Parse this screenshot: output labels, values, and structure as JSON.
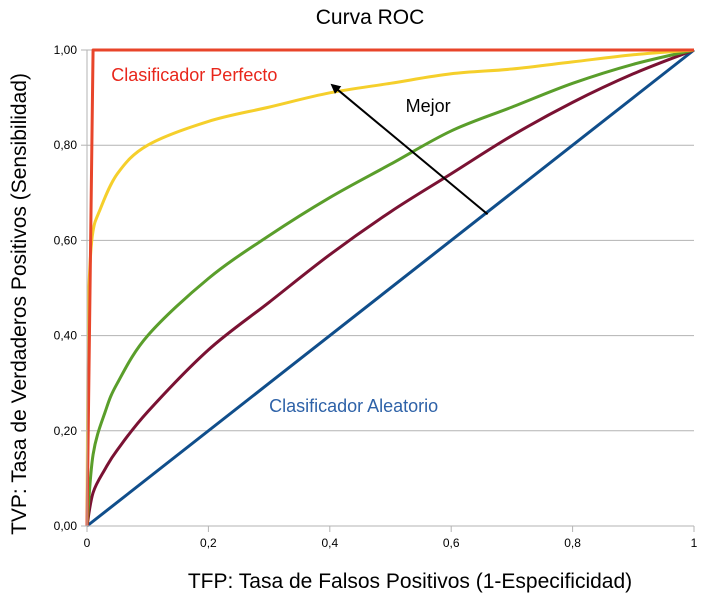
{
  "chart_data": {
    "type": "line",
    "title": "Curva ROC",
    "xlabel": "TFP: Tasa de Falsos Positivos (1-Especificidad)",
    "ylabel": "TVP: Tasa de Verdaderos Positivos (Sensibilidad)",
    "xlim": [
      0,
      1
    ],
    "ylim": [
      0,
      1
    ],
    "x_ticks": [
      0,
      0.2,
      0.4,
      0.6,
      0.8,
      1
    ],
    "x_tick_labels": [
      "0",
      "0,2",
      "0,4",
      "0,6",
      "0,8",
      "1"
    ],
    "y_ticks": [
      0,
      0.2,
      0.4,
      0.6,
      0.8,
      1
    ],
    "y_tick_labels": [
      "0,00",
      "0,20",
      "0,40",
      "0,60",
      "0,80",
      "1,00"
    ],
    "grid": "horizontal",
    "legend": "none",
    "series": [
      {
        "color": "#e8452a",
        "points": [
          [
            0,
            0
          ],
          [
            0.01,
            1.0
          ],
          [
            1.0,
            1.0
          ]
        ]
      },
      {
        "color": "#f5cf2b",
        "points": [
          [
            0,
            0
          ],
          [
            0.002,
            0.42
          ],
          [
            0.005,
            0.55
          ],
          [
            0.01,
            0.62
          ],
          [
            0.02,
            0.66
          ],
          [
            0.05,
            0.74
          ],
          [
            0.1,
            0.8
          ],
          [
            0.2,
            0.85
          ],
          [
            0.3,
            0.88
          ],
          [
            0.4,
            0.91
          ],
          [
            0.5,
            0.93
          ],
          [
            0.6,
            0.95
          ],
          [
            0.7,
            0.96
          ],
          [
            0.8,
            0.975
          ],
          [
            0.9,
            0.99
          ],
          [
            1.0,
            1.0
          ]
        ]
      },
      {
        "color": "#5a9e2b",
        "points": [
          [
            0,
            0
          ],
          [
            0.01,
            0.15
          ],
          [
            0.03,
            0.24
          ],
          [
            0.05,
            0.3
          ],
          [
            0.1,
            0.4
          ],
          [
            0.2,
            0.52
          ],
          [
            0.3,
            0.61
          ],
          [
            0.4,
            0.69
          ],
          [
            0.5,
            0.76
          ],
          [
            0.6,
            0.83
          ],
          [
            0.7,
            0.88
          ],
          [
            0.8,
            0.93
          ],
          [
            0.9,
            0.97
          ],
          [
            1.0,
            1.0
          ]
        ]
      },
      {
        "color": "#7a1233",
        "points": [
          [
            0,
            0
          ],
          [
            0.01,
            0.07
          ],
          [
            0.03,
            0.12
          ],
          [
            0.05,
            0.16
          ],
          [
            0.1,
            0.24
          ],
          [
            0.2,
            0.37
          ],
          [
            0.3,
            0.47
          ],
          [
            0.4,
            0.57
          ],
          [
            0.5,
            0.66
          ],
          [
            0.6,
            0.74
          ],
          [
            0.7,
            0.82
          ],
          [
            0.8,
            0.89
          ],
          [
            0.9,
            0.95
          ],
          [
            1.0,
            1.0
          ]
        ]
      },
      {
        "color": "#104e8b",
        "points": [
          [
            0,
            0
          ],
          [
            1.0,
            1.0
          ]
        ]
      }
    ],
    "annotations": [
      {
        "text": "Clasificador Perfecto",
        "x": 0.04,
        "y": 0.935,
        "color": "#e8261b"
      },
      {
        "text": "Mejor",
        "x": 0.525,
        "y": 0.87,
        "color": "#000000"
      },
      {
        "text": "Clasificador Aleatorio",
        "x": 0.3,
        "y": 0.24,
        "color": "#2e62a8"
      }
    ],
    "arrow": {
      "from": [
        0.66,
        0.655
      ],
      "to": [
        0.405,
        0.925
      ],
      "color": "#000000"
    }
  }
}
